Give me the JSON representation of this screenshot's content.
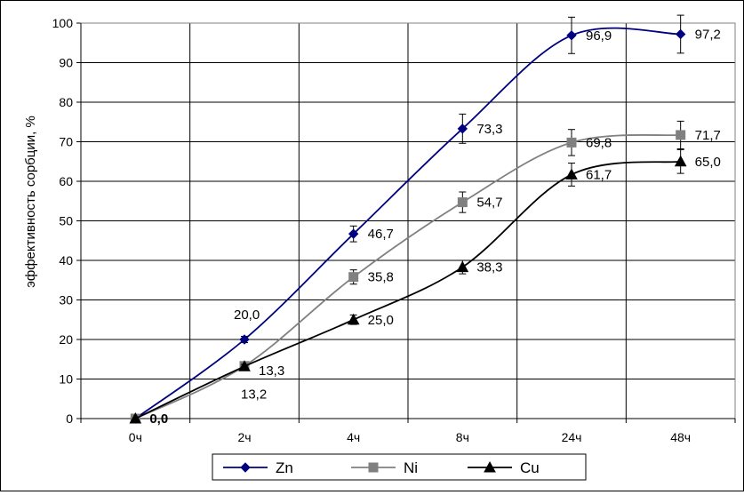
{
  "chart_data": {
    "type": "line",
    "title": "",
    "xlabel": "",
    "ylabel": "эффективность сорбции, %",
    "ylim": [
      0,
      100
    ],
    "yticks": [
      0,
      10,
      20,
      30,
      40,
      50,
      60,
      70,
      80,
      90,
      100
    ],
    "categories": [
      "0ч",
      "2ч",
      "4ч",
      "8ч",
      "24ч",
      "48ч"
    ],
    "grid": true,
    "legend": "bottom",
    "series": [
      {
        "name": "Zn",
        "color": "#000080",
        "marker": "diamond",
        "values": [
          0,
          20.0,
          46.7,
          73.3,
          96.9,
          97.2
        ],
        "labels": [
          "",
          "20,0",
          "46,7",
          "73,3",
          "96,9",
          "97,2"
        ],
        "errors": [
          0,
          0.8,
          2.0,
          3.7,
          4.6,
          4.8
        ]
      },
      {
        "name": "Ni",
        "color": "#808080",
        "marker": "square",
        "values": [
          0,
          13.3,
          35.8,
          54.7,
          69.8,
          71.7
        ],
        "labels": [
          "",
          "13,3",
          "35,8",
          "54,7",
          "69,8",
          "71,7"
        ],
        "errors": [
          0,
          0.5,
          1.8,
          2.6,
          3.3,
          3.5
        ]
      },
      {
        "name": "Cu",
        "color": "#000000",
        "marker": "triangle",
        "values": [
          0,
          13.2,
          25.0,
          38.3,
          61.7,
          65.0
        ],
        "labels": [
          "0,0",
          "13,2",
          "25,0",
          "38,3",
          "61,7",
          "65,0"
        ],
        "errors": [
          0,
          0.5,
          1.2,
          1.7,
          2.9,
          3.0
        ]
      }
    ]
  }
}
